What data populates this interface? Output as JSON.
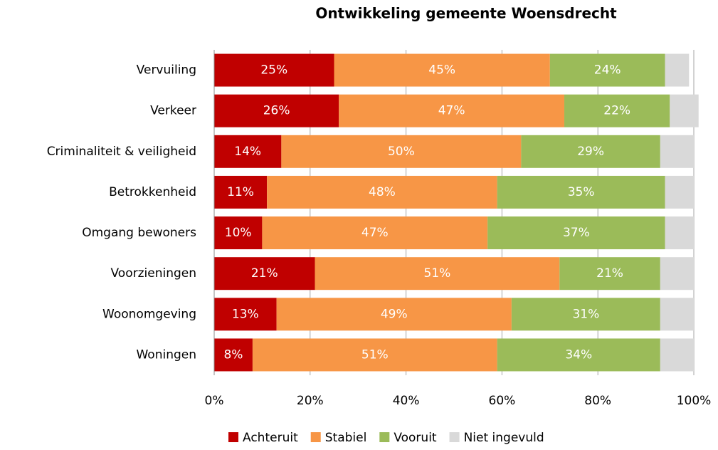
{
  "chart_data": {
    "type": "stacked-bar-horizontal",
    "title": "Ontwikkeling gemeente Woensdrecht",
    "categories": [
      "Vervuiling",
      "Verkeer",
      "Criminaliteit & veiligheid",
      "Betrokkenheid",
      "Omgang bewoners",
      "Voorzieningen",
      "Woonomgeving",
      "Woningen"
    ],
    "series": [
      {
        "name": "Achteruit",
        "color": "#c00000",
        "values": [
          25,
          26,
          14,
          11,
          10,
          21,
          13,
          8
        ],
        "value_labels": [
          "25%",
          "26%",
          "14%",
          "11%",
          "10%",
          "21%",
          "13%",
          "8%"
        ]
      },
      {
        "name": "Stabiel",
        "color": "#f79646",
        "values": [
          45,
          47,
          50,
          48,
          47,
          51,
          49,
          51
        ],
        "value_labels": [
          "45%",
          "47%",
          "50%",
          "48%",
          "47%",
          "51%",
          "49%",
          "51%"
        ]
      },
      {
        "name": "Vooruit",
        "color": "#9bbb59",
        "values": [
          24,
          22,
          29,
          35,
          37,
          21,
          31,
          34
        ],
        "value_labels": [
          "24%",
          "22%",
          "29%",
          "35%",
          "37%",
          "21%",
          "31%",
          "34%"
        ]
      },
      {
        "name": "Niet ingevuld",
        "color": "#d9d9d9",
        "values": [
          5,
          6,
          7,
          6,
          6,
          7,
          7,
          7
        ]
      }
    ],
    "xlim": [
      0,
      100
    ],
    "xticks": [
      {
        "value": 0,
        "label": "0%"
      },
      {
        "value": 20,
        "label": "20%"
      },
      {
        "value": 40,
        "label": "40%"
      },
      {
        "value": 60,
        "label": "60%"
      },
      {
        "value": 80,
        "label": "80%"
      },
      {
        "value": 100,
        "label": "100%"
      }
    ],
    "grid": true,
    "legend": "bottom"
  }
}
